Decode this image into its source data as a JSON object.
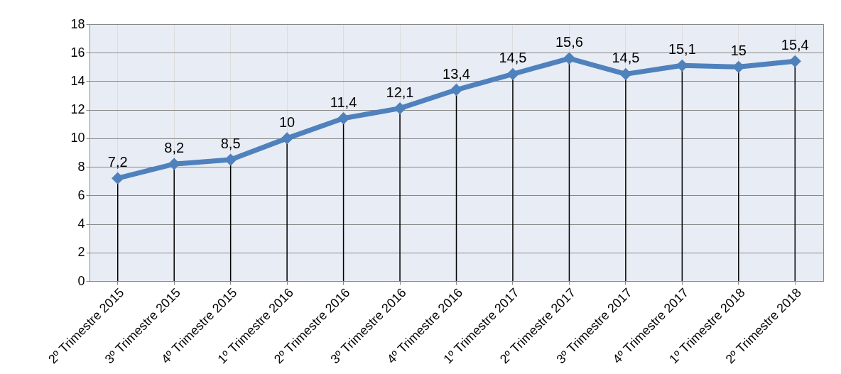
{
  "chart_data": {
    "type": "line",
    "categories": [
      "2º Trimestre 2015",
      "3º Trimestre 2015",
      "4º Trimestre 2015",
      "1º Trimestre 2016",
      "2º Trimestre 2016",
      "3º Trimestre 2016",
      "4º Trimestre 2016",
      "1º Trimestre 2017",
      "2º Trimestre 2017",
      "3º Trimestre 2017",
      "4º Trimestre 2017",
      "1º Trimestre 2018",
      "2º Trimestre 2018"
    ],
    "series": [
      {
        "color": "#4f81bd",
        "values": [
          7.2,
          8.2,
          8.5,
          10,
          11.4,
          12.1,
          13.4,
          14.5,
          15.6,
          14.5,
          15.1,
          15,
          15.4
        ],
        "value_labels": [
          "7,2",
          "8,2",
          "8,5",
          "10",
          "11,4",
          "12,1",
          "13,4",
          "14,5",
          "15,6",
          "14,5",
          "15,1",
          "15",
          "15,4"
        ]
      }
    ],
    "ylim": [
      0,
      18
    ],
    "yticks": [
      0,
      2,
      4,
      6,
      8,
      10,
      12,
      14,
      16,
      18
    ],
    "grid": true,
    "marker": "diamond",
    "line_style": "solid"
  }
}
